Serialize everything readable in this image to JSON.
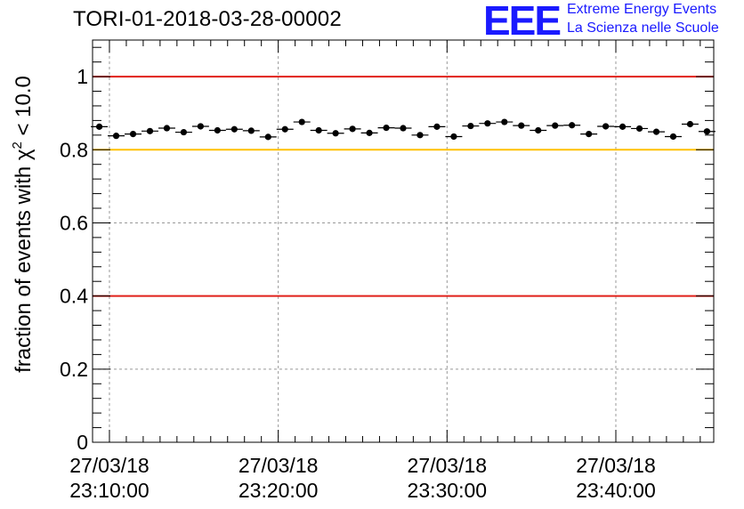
{
  "title": "TORI-01-2018-03-28-00002",
  "logo": {
    "text": "EEE",
    "line1": "Extreme Energy Events",
    "line2": "La Scienza nelle Scuole",
    "color": "#1a1aff"
  },
  "chart_data": {
    "type": "scatter",
    "title": "TORI-01-2018-03-28-00002",
    "ylabel": "fraction of events with χ² < 10.0",
    "ylabel_parts": {
      "prefix": "fraction of events with χ",
      "sup": "2",
      "suffix": " < 10.0"
    },
    "xlabel": "",
    "ylim": [
      0,
      1.1
    ],
    "xlim_minutes": [
      -1.0,
      35.8
    ],
    "yticks": [
      {
        "value": 0,
        "label": "0"
      },
      {
        "value": 0.2,
        "label": "0.2"
      },
      {
        "value": 0.4,
        "label": "0.4"
      },
      {
        "value": 0.6,
        "label": "0.6"
      },
      {
        "value": 0.8,
        "label": "0.8"
      },
      {
        "value": 1,
        "label": "1"
      }
    ],
    "xticks": [
      {
        "minute": 0,
        "date": "27/03/18",
        "time": "23:10:00"
      },
      {
        "minute": 10,
        "date": "27/03/18",
        "time": "23:20:00"
      },
      {
        "minute": 20,
        "date": "27/03/18",
        "time": "23:30:00"
      },
      {
        "minute": 30,
        "date": "27/03/18",
        "time": "23:40:00"
      }
    ],
    "grid": true,
    "reference_lines": [
      {
        "y": 1.0,
        "color": "#e0201a"
      },
      {
        "y": 0.8,
        "color": "#ffc000"
      },
      {
        "y": 0.4,
        "color": "#e0201a"
      }
    ],
    "points_x_minutes": [
      -0.6,
      0.4,
      1.4,
      2.4,
      3.4,
      4.4,
      5.4,
      6.4,
      7.4,
      8.4,
      9.4,
      10.4,
      11.4,
      12.4,
      13.4,
      14.4,
      15.4,
      16.4,
      17.4,
      18.4,
      19.4,
      20.4,
      21.4,
      22.4,
      23.4,
      24.4,
      25.4,
      26.4,
      27.4,
      28.4,
      29.4,
      30.4,
      31.4,
      32.4,
      33.4,
      34.4,
      35.4
    ],
    "points_y": [
      0.863,
      0.838,
      0.843,
      0.851,
      0.859,
      0.848,
      0.864,
      0.853,
      0.856,
      0.852,
      0.835,
      0.856,
      0.876,
      0.853,
      0.845,
      0.857,
      0.846,
      0.86,
      0.859,
      0.84,
      0.863,
      0.836,
      0.865,
      0.872,
      0.876,
      0.866,
      0.853,
      0.866,
      0.867,
      0.843,
      0.864,
      0.863,
      0.858,
      0.849,
      0.836,
      0.87,
      0.85
    ],
    "x_error_minutes": 0.5,
    "y_error": 0.005,
    "marker_color": "#000000"
  }
}
